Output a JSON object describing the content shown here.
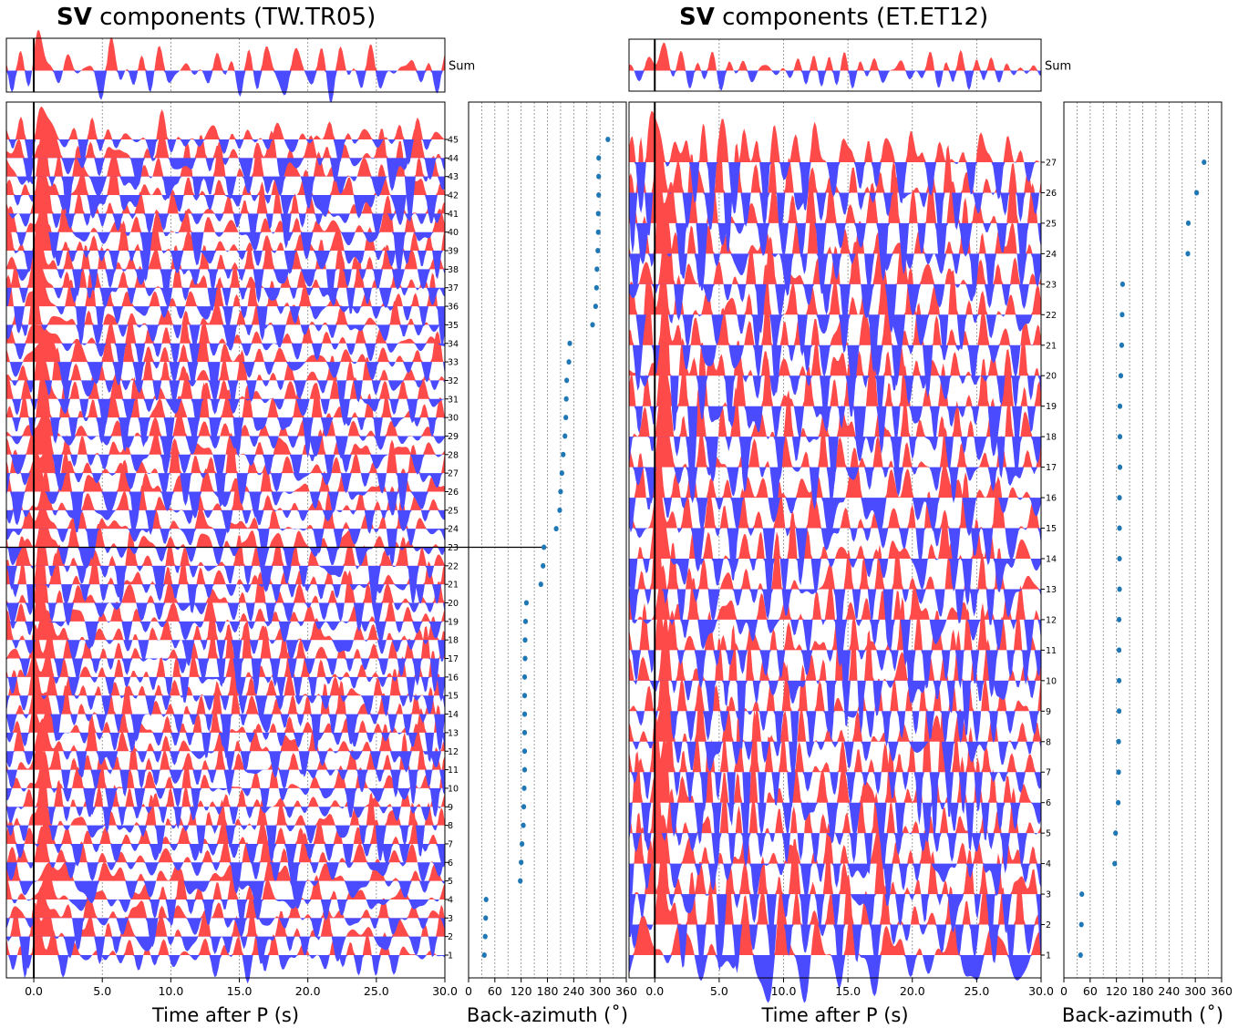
{
  "chart_data": [
    {
      "type": "area",
      "title_bold": "SV",
      "title_rest": "components (TW.TR05)",
      "xlabel": "Time after P (s)",
      "xlim": [
        -2,
        30
      ],
      "xticks": [
        "0.0",
        "5.0",
        "10.0",
        "15.0",
        "20.0",
        "25.0",
        "30.0"
      ],
      "xtick_values": [
        0,
        5,
        10,
        15,
        20,
        25,
        30
      ],
      "positive_color": "#ff4a4a",
      "negative_color": "#4a4aff",
      "sum_label": "Sum",
      "trace_count": 45,
      "trace_labels": [
        "1",
        "2",
        "3",
        "4",
        "5",
        "6",
        "7",
        "8",
        "9",
        "10",
        "11",
        "12",
        "13",
        "14",
        "15",
        "16",
        "17",
        "18",
        "19",
        "20",
        "21",
        "22",
        "23",
        "24",
        "25",
        "26",
        "27",
        "28",
        "29",
        "30",
        "31",
        "32",
        "33",
        "34",
        "35",
        "36",
        "37",
        "38",
        "39",
        "40",
        "41",
        "42",
        "43",
        "44",
        "45"
      ],
      "highlighted_trace": 23,
      "seed": 11
    },
    {
      "type": "scatter",
      "xlabel": "Back-azimuth (˚)",
      "xlim": [
        0,
        360
      ],
      "xticks": [
        "0",
        "60",
        "120",
        "180",
        "240",
        "300",
        "360"
      ],
      "xtick_values": [
        0,
        60,
        120,
        180,
        240,
        300,
        360
      ],
      "minor_grid_values": [
        30,
        90,
        150,
        210,
        270,
        330
      ],
      "point_color": "#1f77b4",
      "trace": [
        1,
        2,
        3,
        4,
        5,
        6,
        7,
        8,
        9,
        10,
        11,
        12,
        13,
        14,
        15,
        16,
        17,
        18,
        19,
        20,
        21,
        22,
        23,
        24,
        25,
        26,
        27,
        28,
        29,
        30,
        31,
        32,
        33,
        34,
        35,
        36,
        37,
        38,
        39,
        40,
        41,
        42,
        43,
        44,
        45
      ],
      "baz": [
        36,
        38,
        39,
        40,
        118,
        120,
        122,
        125,
        126,
        127,
        128,
        128,
        128,
        128,
        128,
        128,
        129,
        129,
        130,
        132,
        165,
        170,
        172,
        200,
        208,
        210,
        213,
        216,
        220,
        222,
        223,
        224,
        229,
        231,
        283,
        290,
        292,
        293,
        295,
        296,
        296,
        297,
        297,
        297,
        318
      ]
    },
    {
      "type": "area",
      "title_bold": "SV",
      "title_rest": "components (ET.ET12)",
      "xlabel": "Time after P (s)",
      "xlim": [
        -2,
        30
      ],
      "xticks": [
        "0.0",
        "5.0",
        "10.0",
        "15.0",
        "20.0",
        "25.0",
        "30.0"
      ],
      "xtick_values": [
        0,
        5,
        10,
        15,
        20,
        25,
        30
      ],
      "positive_color": "#ff4a4a",
      "negative_color": "#4a4aff",
      "sum_label": "Sum",
      "trace_count": 27,
      "trace_labels": [
        "1",
        "2",
        "3",
        "4",
        "5",
        "6",
        "7",
        "8",
        "9",
        "10",
        "11",
        "12",
        "13",
        "14",
        "15",
        "16",
        "17",
        "18",
        "19",
        "20",
        "21",
        "22",
        "23",
        "24",
        "25",
        "26",
        "27"
      ],
      "seed": 37
    },
    {
      "type": "scatter",
      "xlabel": "Back-azimuth (˚)",
      "xlim": [
        0,
        360
      ],
      "xticks": [
        "0",
        "60",
        "120",
        "180",
        "240",
        "300",
        "360"
      ],
      "xtick_values": [
        0,
        60,
        120,
        180,
        240,
        300,
        360
      ],
      "minor_grid_values": [
        30,
        90,
        150,
        210,
        270,
        330
      ],
      "point_color": "#1f77b4",
      "trace": [
        1,
        2,
        3,
        4,
        5,
        6,
        7,
        8,
        9,
        10,
        11,
        12,
        13,
        14,
        15,
        16,
        17,
        18,
        19,
        20,
        21,
        22,
        23,
        24,
        25,
        26,
        27
      ],
      "baz": [
        38,
        40,
        41,
        116,
        118,
        124,
        125,
        125,
        126,
        126,
        126,
        126,
        127,
        127,
        127,
        127,
        128,
        128,
        128,
        130,
        132,
        133,
        134,
        283,
        284,
        303,
        320
      ]
    }
  ]
}
